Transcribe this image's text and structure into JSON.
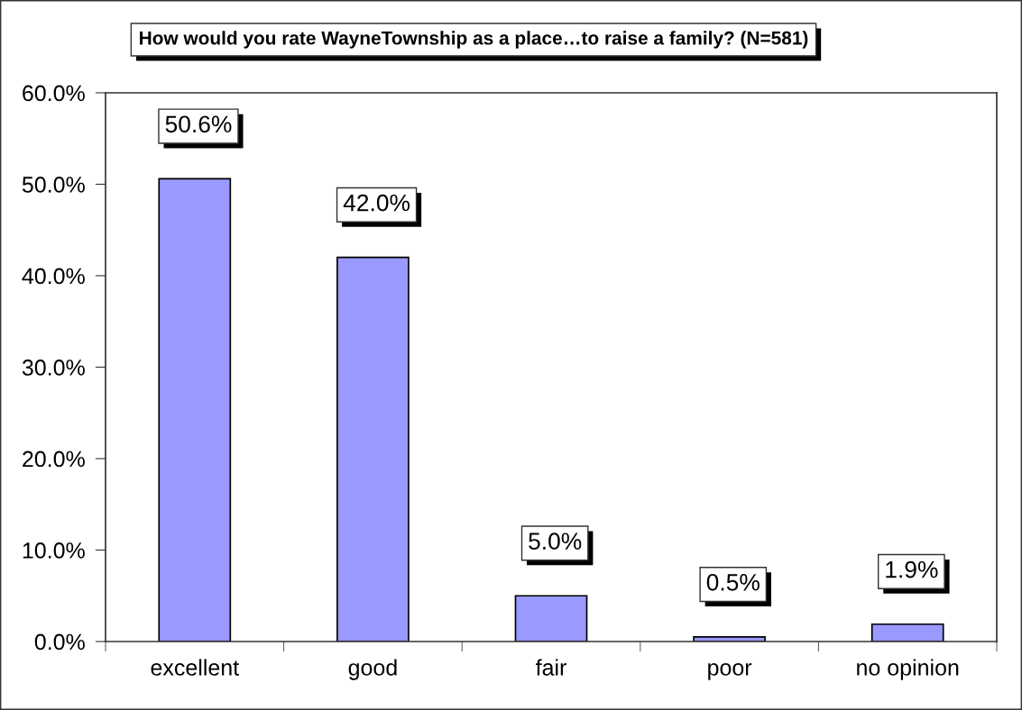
{
  "chart_data": {
    "type": "bar",
    "title": "How would you rate WayneTownship as a place…to raise a family? (N=581)",
    "categories": [
      "excellent",
      "good",
      "fair",
      "poor",
      "no opinion"
    ],
    "values": [
      50.6,
      42.0,
      5.0,
      0.5,
      1.9
    ],
    "value_labels": [
      "50.6%",
      "42.0%",
      "5.0%",
      "0.5%",
      "1.9%"
    ],
    "color": "#9999ff",
    "ylim": [
      0,
      60
    ],
    "yticks": [
      {
        "value": 0,
        "label": "0.0%"
      },
      {
        "value": 10,
        "label": "10.0%"
      },
      {
        "value": 20,
        "label": "20.0%"
      },
      {
        "value": 30,
        "label": "30.0%"
      },
      {
        "value": 40,
        "label": "40.0%"
      },
      {
        "value": 50,
        "label": "50.0%"
      },
      {
        "value": 60,
        "label": "60.0%"
      }
    ]
  }
}
